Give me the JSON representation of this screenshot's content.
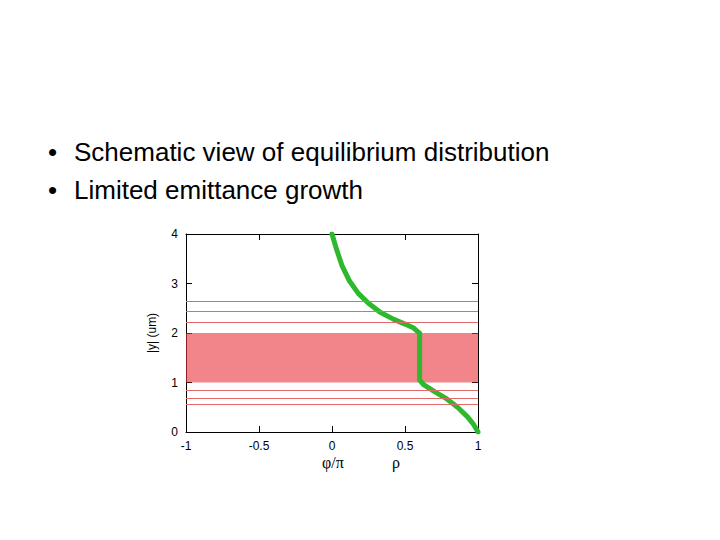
{
  "bullets": [
    "Schematic view of equilibrium distribution",
    "Limited emittance growth"
  ],
  "chart_data": {
    "type": "scatter",
    "xlabels": [
      "φ/π",
      "ρ"
    ],
    "ylabel": "|y| (um)",
    "xlim": [
      -1,
      1
    ],
    "xticks": [
      -1,
      -0.5,
      0,
      0.5,
      1
    ],
    "ylim": [
      0,
      4
    ],
    "yticks": [
      0,
      1,
      2,
      3,
      4
    ],
    "grid": false,
    "band": {
      "y": [
        1,
        2
      ],
      "color": "#e8333a"
    },
    "levels": {
      "y": [
        2.65,
        2.44,
        2.22,
        0.84,
        0.69,
        0.57
      ],
      "color": "#e46a6a"
    },
    "curve": {
      "type": "line",
      "color": "#2db82d",
      "x": [
        0,
        0.03,
        0.07,
        0.12,
        0.18,
        0.25,
        0.33,
        0.42,
        0.5,
        0.56,
        0.59,
        0.6,
        0.6,
        0.63,
        0.7,
        0.78,
        0.86,
        0.93,
        0.97,
        1
      ],
      "y": [
        4,
        3.7,
        3.35,
        3.05,
        2.8,
        2.6,
        2.42,
        2.28,
        2.18,
        2.1,
        2.02,
        2.0,
        1.05,
        0.95,
        0.82,
        0.68,
        0.5,
        0.3,
        0.15,
        0
      ]
    }
  }
}
